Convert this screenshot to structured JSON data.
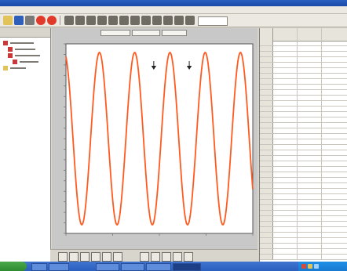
{
  "colors": {
    "chart_bg": "#ffffff",
    "axis": "#555555",
    "signal": "#ff5a1f",
    "marker": "#222222",
    "toolbar_icon_blue": "#2f5fb8",
    "toolbar_icon_red": "#e23a2a",
    "toolbar_icon_gray": "#7a7a7a",
    "tree_icon_red": "#c83a3a",
    "tree_icon_yellow": "#e2c35a",
    "taskbar": "#2b5fbe"
  },
  "chart_data": {
    "type": "line",
    "series": [
      {
        "kind": "sine",
        "cycles": 5.3,
        "amplitude": 1,
        "phase": 0.3
      }
    ],
    "ylim": [
      -1.1,
      1.1
    ],
    "grid": false,
    "markers": [
      {
        "name": "marker-1",
        "x_fraction": 0.47
      },
      {
        "name": "marker-2",
        "x_fraction": 0.66
      }
    ],
    "xlabel": "",
    "ylabel": "",
    "title": ""
  },
  "table": {
    "rows": 40
  },
  "tree": {
    "items": [
      {
        "name": "root"
      },
      {
        "name": "child-1"
      },
      {
        "name": "child-2"
      },
      {
        "name": "child-3"
      },
      {
        "name": "leaf"
      }
    ]
  }
}
